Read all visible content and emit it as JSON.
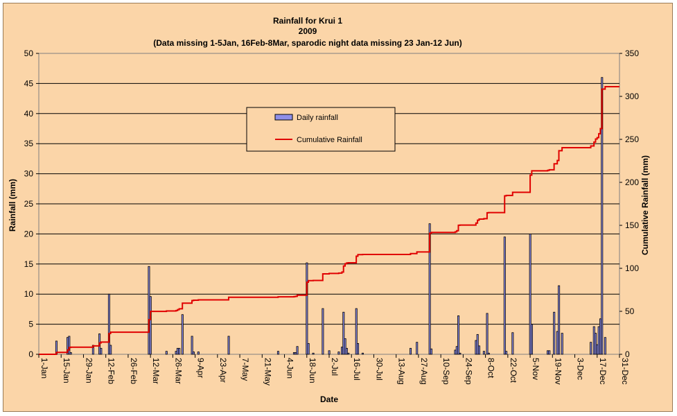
{
  "chart_data": {
    "type": "bar",
    "title": "Rainfall for Krui 1",
    "subtitle": "2009",
    "note": "(Data missing 1-5Jan, 16Feb-8Mar, sparodic night data missing 23 Jan-12 Jun)",
    "xlabel": "Date",
    "ylabel": "Rainfall (mm)",
    "y2label": "Cumulative Rainfall (mm)",
    "ylim": [
      0,
      50
    ],
    "y2lim": [
      0,
      350
    ],
    "grid": true,
    "legend_position": "upper-center",
    "x_tick_labels": [
      "1-Jan",
      "15-Jan",
      "29-Jan",
      "12-Feb",
      "26-Feb",
      "12-Mar",
      "26-Mar",
      "9-Apr",
      "23-Apr",
      "7-May",
      "21-May",
      "4-Jun",
      "18-Jun",
      "2-Jul",
      "16-Jul",
      "30-Jul",
      "13-Aug",
      "27-Aug",
      "10-Sep",
      "24-Sep",
      "8-Oct",
      "22-Oct",
      "5-Nov",
      "19-Nov",
      "3-Dec",
      "17-Dec",
      "31-Dec"
    ],
    "y_ticks": [
      0,
      5,
      10,
      15,
      20,
      25,
      30,
      35,
      40,
      45,
      50
    ],
    "y2_ticks": [
      0,
      50,
      100,
      150,
      200,
      250,
      300,
      350
    ],
    "series": [
      {
        "name": "Daily rainfall",
        "type": "bar",
        "color": "#8f8fe8",
        "x": [
          "2009-01-12",
          "2009-01-19",
          "2009-01-20",
          "2009-01-21",
          "2009-02-04",
          "2009-02-08",
          "2009-02-09",
          "2009-02-14",
          "2009-02-15",
          "2009-03-11",
          "2009-03-12",
          "2009-03-22",
          "2009-03-28",
          "2009-03-29",
          "2009-03-30",
          "2009-04-01",
          "2009-04-07",
          "2009-04-08",
          "2009-04-11",
          "2009-04-30",
          "2009-05-31",
          "2009-06-10",
          "2009-06-11",
          "2009-06-12",
          "2009-06-18",
          "2009-06-19",
          "2009-06-22",
          "2009-06-28",
          "2009-07-02",
          "2009-07-08",
          "2009-07-10",
          "2009-07-11",
          "2009-07-12",
          "2009-07-13",
          "2009-07-14",
          "2009-07-19",
          "2009-07-20",
          "2009-07-23",
          "2009-08-22",
          "2009-08-26",
          "2009-09-03",
          "2009-09-04",
          "2009-09-19",
          "2009-09-20",
          "2009-09-21",
          "2009-09-22",
          "2009-10-02",
          "2009-10-03",
          "2009-10-04",
          "2009-10-07",
          "2009-10-09",
          "2009-10-10",
          "2009-10-20",
          "2009-10-21",
          "2009-10-25",
          "2009-11-05",
          "2009-11-06",
          "2009-11-16",
          "2009-11-17",
          "2009-11-20",
          "2009-11-22",
          "2009-11-23",
          "2009-11-25",
          "2009-12-13",
          "2009-12-15",
          "2009-12-16",
          "2009-12-17",
          "2009-12-18",
          "2009-12-19",
          "2009-12-20",
          "2009-12-22"
        ],
        "values": [
          2.2,
          2.8,
          3.0,
          0.3,
          1.5,
          3.4,
          1.0,
          10.0,
          1.5,
          14.6,
          9.6,
          0.5,
          0.5,
          1.0,
          1.0,
          6.6,
          3.0,
          0.4,
          0.4,
          3.0,
          0.5,
          0.3,
          0.3,
          1.3,
          15.2,
          1.8,
          0.2,
          7.6,
          0.6,
          0.4,
          1.2,
          7.0,
          2.6,
          1.0,
          0.2,
          7.6,
          1.8,
          0.2,
          1.0,
          2.0,
          21.7,
          0.9,
          0.7,
          1.3,
          6.4,
          0.2,
          2.3,
          3.3,
          1.4,
          0.5,
          6.8,
          0.2,
          19.5,
          0.5,
          3.6,
          20.0,
          5.0,
          0.6,
          0.6,
          7.0,
          3.8,
          11.4,
          3.5,
          2.0,
          4.6,
          3.5,
          1.6,
          4.6,
          5.9,
          46.0,
          2.8
        ]
      },
      {
        "name": "Cumulative Rainfall",
        "type": "line",
        "color": "#e00000",
        "x": [
          "2009-01-01",
          "2009-01-12",
          "2009-01-19",
          "2009-01-20",
          "2009-01-21",
          "2009-02-04",
          "2009-02-08",
          "2009-02-09",
          "2009-02-14",
          "2009-02-15",
          "2009-03-11",
          "2009-03-12",
          "2009-03-22",
          "2009-03-28",
          "2009-03-29",
          "2009-03-30",
          "2009-04-01",
          "2009-04-07",
          "2009-04-08",
          "2009-04-11",
          "2009-04-30",
          "2009-05-31",
          "2009-06-10",
          "2009-06-11",
          "2009-06-12",
          "2009-06-18",
          "2009-06-19",
          "2009-06-22",
          "2009-06-28",
          "2009-07-02",
          "2009-07-08",
          "2009-07-10",
          "2009-07-11",
          "2009-07-12",
          "2009-07-13",
          "2009-07-14",
          "2009-07-19",
          "2009-07-20",
          "2009-07-23",
          "2009-08-22",
          "2009-08-26",
          "2009-09-03",
          "2009-09-04",
          "2009-09-19",
          "2009-09-20",
          "2009-09-21",
          "2009-09-22",
          "2009-10-02",
          "2009-10-03",
          "2009-10-04",
          "2009-10-07",
          "2009-10-09",
          "2009-10-10",
          "2009-10-20",
          "2009-10-21",
          "2009-10-25",
          "2009-11-05",
          "2009-11-06",
          "2009-11-16",
          "2009-11-17",
          "2009-11-20",
          "2009-11-22",
          "2009-11-23",
          "2009-11-25",
          "2009-12-13",
          "2009-12-15",
          "2009-12-16",
          "2009-12-17",
          "2009-12-18",
          "2009-12-19",
          "2009-12-20",
          "2009-12-22",
          "2009-12-31"
        ],
        "values": [
          0,
          2.2,
          5.0,
          8.0,
          8.3,
          9.8,
          13.2,
          14.2,
          24.2,
          25.7,
          40.3,
          49.9,
          50.4,
          50.9,
          51.9,
          52.9,
          59.5,
          62.5,
          62.9,
          63.3,
          66.3,
          66.8,
          67.1,
          67.4,
          68.7,
          83.9,
          85.7,
          85.9,
          93.5,
          94.1,
          94.5,
          95.7,
          102.7,
          105.3,
          106.3,
          106.5,
          114.1,
          115.9,
          116.1,
          117.1,
          119.1,
          140.8,
          141.7,
          142.4,
          143.7,
          150.1,
          150.3,
          152.6,
          155.9,
          157.3,
          157.8,
          164.6,
          164.8,
          184.3,
          184.8,
          188.4,
          208.4,
          213.4,
          214.0,
          214.6,
          221.6,
          225.4,
          236.8,
          240.3,
          242.3,
          246.9,
          250.4,
          252.0,
          256.6,
          262.5,
          308.5,
          311.3,
          311.3
        ]
      }
    ]
  }
}
